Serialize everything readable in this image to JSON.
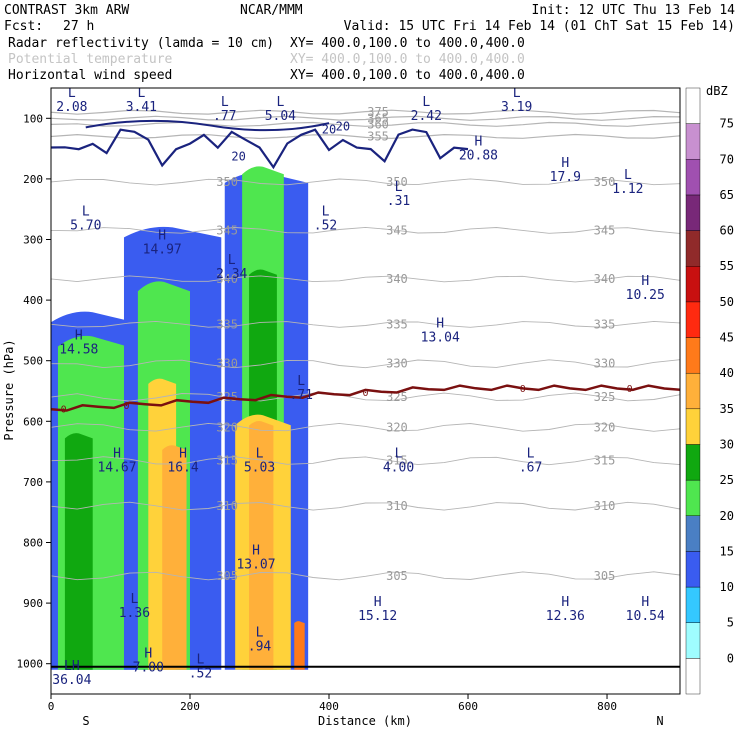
{
  "header": {
    "model": "CONTRAST  3km ARW",
    "source": "NCAR/MMM",
    "init": "Init: 12 UTC Thu 13 Feb 14",
    "fcst_label": "Fcst:",
    "fcst_value": "27 h",
    "valid": "Valid: 15 UTC Fri 14 Feb 14 (01 ChT Sat 15 Feb 14)",
    "fields": [
      {
        "name": "Radar reflectivity (lamda = 10 cm)",
        "xy": "XY= 400.0,100.0 to 400.0,400.0",
        "color": "#000000"
      },
      {
        "name": "Potential temperature",
        "xy": "XY= 400.0,100.0 to 400.0,400.0",
        "color": "#c4c4c4"
      },
      {
        "name": "Horizontal wind speed",
        "xy": "XY= 400.0,100.0 to 400.0,400.0",
        "color": "#000000"
      }
    ]
  },
  "chart_data": {
    "type": "cross-section",
    "xlabel": "Distance (km)",
    "ylabel": "Pressure (hPa)",
    "xlim": [
      0,
      905
    ],
    "ylim": [
      1050,
      50
    ],
    "x_ticks": [
      0,
      200,
      400,
      600,
      800
    ],
    "y_ticks": [
      100,
      200,
      300,
      400,
      500,
      600,
      700,
      800,
      900,
      1000
    ],
    "direction_labels": {
      "left": "S",
      "right": "N"
    },
    "colorbar": {
      "unit": "dBZ",
      "levels": [
        0,
        5,
        10,
        15,
        20,
        25,
        30,
        35,
        40,
        45,
        50,
        55,
        60,
        65,
        70,
        75
      ],
      "colors": [
        "#ffffff",
        "#9ffdff",
        "#34c8ff",
        "#3a5cf0",
        "#4a7fc4",
        "#4fe64f",
        "#10a810",
        "#ffd23a",
        "#ffb03a",
        "#ff7a1a",
        "#ff2a10",
        "#c81010",
        "#902a2a",
        "#782878",
        "#a050b0",
        "#c890d0",
        "#ffffff"
      ]
    },
    "reflectivity_columns": [
      {
        "x": [
          0,
          120
        ],
        "top": 420,
        "level": 10
      },
      {
        "x": [
          10,
          110
        ],
        "top": 460,
        "level": 20
      },
      {
        "x": [
          20,
          60
        ],
        "top": 620,
        "level": 25
      },
      {
        "x": [
          105,
          245
        ],
        "top": 280,
        "level": 10
      },
      {
        "x": [
          125,
          200
        ],
        "top": 370,
        "level": 20
      },
      {
        "x": [
          140,
          180
        ],
        "top": 530,
        "level": 30
      },
      {
        "x": [
          160,
          195
        ],
        "top": 640,
        "level": 35
      },
      {
        "x": [
          250,
          370
        ],
        "top": 190,
        "level": 10
      },
      {
        "x": [
          275,
          335
        ],
        "top": 180,
        "level": 20
      },
      {
        "x": [
          285,
          325
        ],
        "top": 350,
        "level": 25
      },
      {
        "x": [
          265,
          345
        ],
        "top": 590,
        "level": 30
      },
      {
        "x": [
          285,
          320
        ],
        "top": 600,
        "level": 35
      },
      {
        "x": [
          350,
          365
        ],
        "top": 930,
        "level": 40
      }
    ],
    "theta_contours": [
      {
        "value": 305,
        "p": 855
      },
      {
        "value": 310,
        "p": 740
      },
      {
        "value": 315,
        "p": 665
      },
      {
        "value": 320,
        "p": 610
      },
      {
        "value": 325,
        "p": 560
      },
      {
        "value": 330,
        "p": 505
      },
      {
        "value": 335,
        "p": 440
      },
      {
        "value": 340,
        "p": 365
      },
      {
        "value": 345,
        "p": 285
      },
      {
        "value": 350,
        "p": 205
      },
      {
        "value": 355,
        "p": 130
      },
      {
        "value": 360,
        "p": 110
      },
      {
        "value": 365,
        "p": 100
      },
      {
        "value": 375,
        "p": 90
      }
    ],
    "freezing_level": {
      "value": "0",
      "p_left": 580,
      "p_right": 545
    },
    "wind_contour_labels": [
      "20",
      "20",
      "20"
    ],
    "extrema": [
      {
        "type": "L",
        "value": "2.08",
        "x": 30,
        "p": 70
      },
      {
        "type": "L",
        "value": "3.41",
        "x": 130,
        "p": 70
      },
      {
        "type": "L",
        "value": ".77",
        "x": 250,
        "p": 85
      },
      {
        "type": "L",
        "value": "5.04",
        "x": 330,
        "p": 85
      },
      {
        "type": "L",
        "value": "2.42",
        "x": 540,
        "p": 85
      },
      {
        "type": "L",
        "value": "3.19",
        "x": 670,
        "p": 70
      },
      {
        "type": "H",
        "value": "20.88",
        "x": 615,
        "p": 150
      },
      {
        "type": "H",
        "value": "17.9",
        "x": 740,
        "p": 185
      },
      {
        "type": "L",
        "value": "1.12",
        "x": 830,
        "p": 205
      },
      {
        "type": "L",
        "value": ".31",
        "x": 500,
        "p": 225
      },
      {
        "type": "L",
        "value": "5.70",
        "x": 50,
        "p": 265
      },
      {
        "type": "L",
        "value": ".52",
        "x": 395,
        "p": 265
      },
      {
        "type": "H",
        "value": "14.97",
        "x": 160,
        "p": 305
      },
      {
        "type": "L",
        "value": "2.34",
        "x": 260,
        "p": 345
      },
      {
        "type": "H",
        "value": "10.25",
        "x": 855,
        "p": 380
      },
      {
        "type": "H",
        "value": "13.04",
        "x": 560,
        "p": 450
      },
      {
        "type": "H",
        "value": "14.58",
        "x": 40,
        "p": 470
      },
      {
        "type": "L",
        "value": ".71",
        "x": 360,
        "p": 545
      },
      {
        "type": "H",
        "value": "14.67",
        "x": 95,
        "p": 665
      },
      {
        "type": "H",
        "value": "16.4",
        "x": 190,
        "p": 665
      },
      {
        "type": "L",
        "value": "5.03",
        "x": 300,
        "p": 665
      },
      {
        "type": "L",
        "value": "4.00",
        "x": 500,
        "p": 665
      },
      {
        "type": "L",
        "value": ".67",
        "x": 690,
        "p": 665
      },
      {
        "type": "H",
        "value": "13.07",
        "x": 295,
        "p": 825
      },
      {
        "type": "L",
        "value": "1.36",
        "x": 120,
        "p": 905
      },
      {
        "type": "H",
        "value": "15.12",
        "x": 470,
        "p": 910
      },
      {
        "type": "H",
        "value": "12.36",
        "x": 740,
        "p": 910
      },
      {
        "type": "H",
        "value": "10.54",
        "x": 855,
        "p": 910
      },
      {
        "type": "L",
        "value": ".94",
        "x": 300,
        "p": 960
      },
      {
        "type": "H",
        "value": "7.00",
        "x": 140,
        "p": 995
      },
      {
        "type": "L",
        "value": ".52",
        "x": 215,
        "p": 1005
      },
      {
        "type": "LH",
        "value": "36.04",
        "x": 30,
        "p": 1015
      }
    ],
    "grid": false,
    "legend_position": "right-colorbar"
  }
}
